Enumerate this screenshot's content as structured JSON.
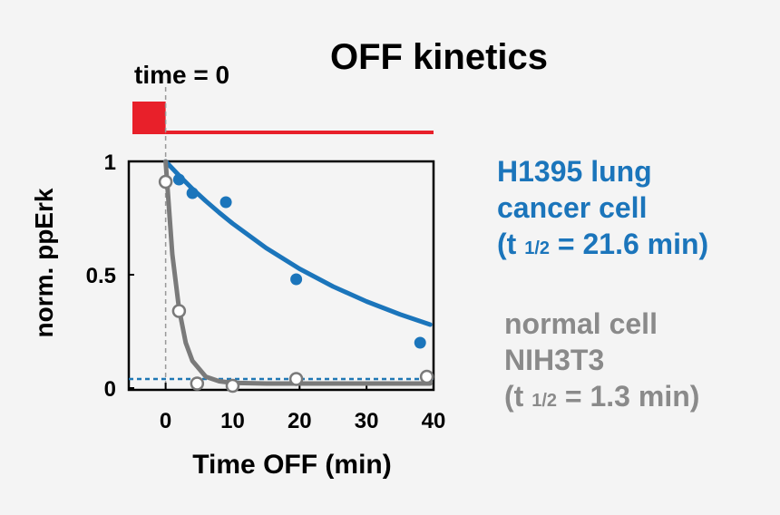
{
  "chart_data": {
    "type": "scatter",
    "title": "OFF kinetics",
    "annotation": "time = 0",
    "xlabel": "Time OFF (min)",
    "ylabel": "norm. ppErk",
    "xlim": [
      -5.5,
      40
    ],
    "ylim": [
      0,
      1
    ],
    "xticks": [
      0,
      10,
      20,
      30,
      40
    ],
    "yticks": [
      0,
      0.5,
      1
    ],
    "baseline": 0.04,
    "baseline_color": "#1f77b4",
    "stimulus_color": "#e8202a",
    "series": [
      {
        "kind": "points",
        "color": "#1b75bb",
        "filled": true,
        "x": [
          0,
          2,
          4,
          9,
          19.5,
          38
        ],
        "values": [
          0.91,
          0.92,
          0.86,
          0.82,
          0.48,
          0.2
        ]
      },
      {
        "kind": "points",
        "color": "#7a7a7a",
        "filled": false,
        "x": [
          0,
          2,
          4.7,
          10,
          19.5,
          39
        ],
        "values": [
          0.91,
          0.34,
          0.02,
          0.01,
          0.04,
          0.05
        ]
      },
      {
        "kind": "fit",
        "color": "#1b75bb",
        "x": [
          0,
          2,
          4,
          6,
          8,
          10,
          15,
          20,
          25,
          30,
          35,
          39.5
        ],
        "values": [
          1,
          0.938,
          0.879,
          0.825,
          0.774,
          0.726,
          0.618,
          0.526,
          0.448,
          0.382,
          0.325,
          0.28
        ]
      },
      {
        "kind": "fit",
        "color": "#7a7a7a",
        "x": [
          0,
          1,
          2,
          3,
          4,
          6,
          8,
          10,
          15,
          20,
          30,
          39.5
        ],
        "values": [
          1,
          0.59,
          0.35,
          0.2,
          0.12,
          0.05,
          0.03,
          0.023,
          0.02,
          0.02,
          0.02,
          0.02
        ]
      }
    ],
    "labels": [
      {
        "color": "#1b75bb",
        "lines": [
          [
            "H1395 lung"
          ],
          [
            "cancer cell"
          ],
          [
            "(t ",
            "1/2",
            " = 21.6 min)"
          ]
        ]
      },
      {
        "color": "#8a8a8a",
        "lines": [
          [
            "normal cell"
          ],
          [
            "NIH3T3"
          ],
          [
            "(t ",
            "1/2",
            " = 1.3 min)"
          ]
        ]
      }
    ]
  }
}
